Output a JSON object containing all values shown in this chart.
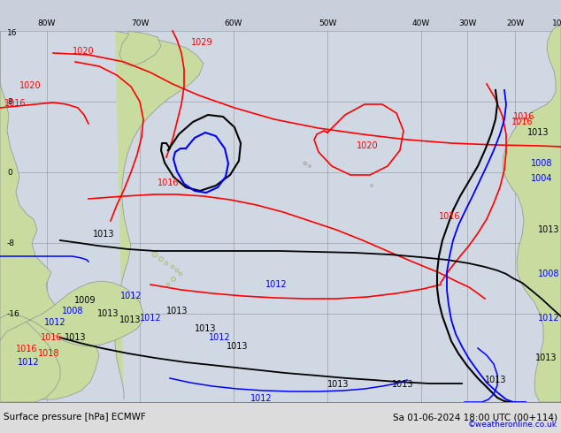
{
  "title_bottom": "Surface pressure [hPa] ECMWF",
  "date_label": "Sa 01-06-2024 18:00 UTC (00+114)",
  "copyright": "©weatheronline.co.uk",
  "bg_color": "#c8d0dc",
  "ocean_color": "#d0d8e4",
  "land_color": "#c8dca0",
  "bar_color": "#dcdcdc",
  "grid_color": "#909090",
  "fig_width": 6.34,
  "fig_height": 4.9,
  "dpi": 100
}
